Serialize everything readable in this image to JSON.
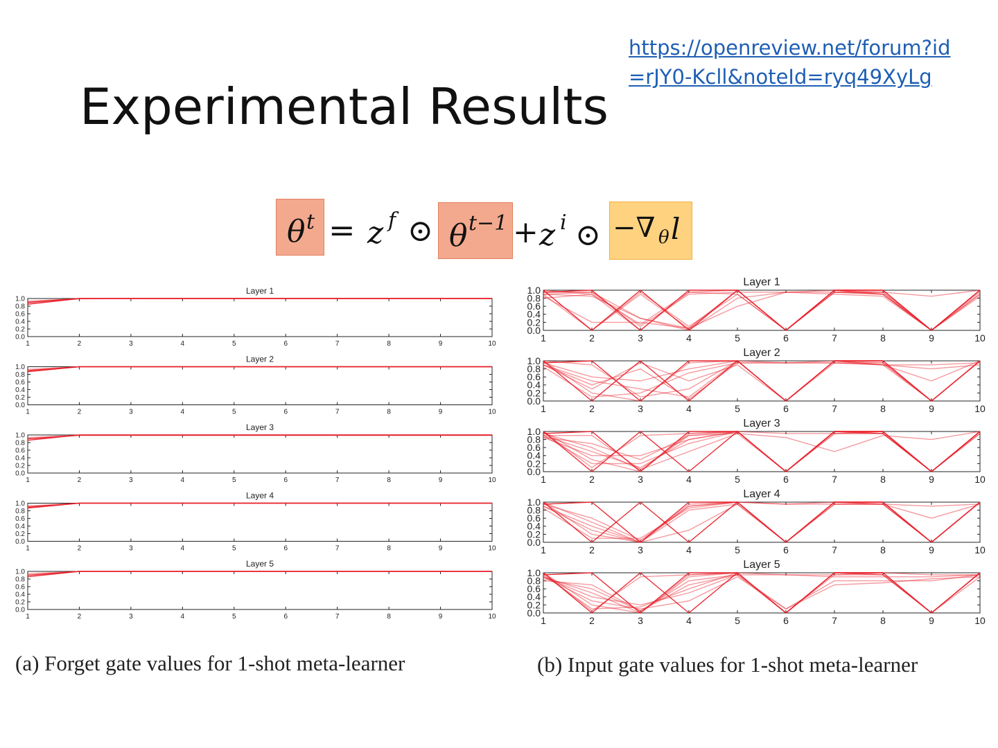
{
  "slide": {
    "title": "Experimental Results",
    "link_line1": "https://openreview.net/forum?id",
    "link_line2": "=rJY0-Kcll&noteId=ryq49XyLg"
  },
  "equation": {
    "theta_t": "θ",
    "theta_t_sup": "t",
    "equals": "=",
    "zf": "z",
    "zf_sup": "f",
    "odot1": "⊙",
    "theta_tm1": "θ",
    "theta_tm1_sup": "t−1",
    "plus": "+",
    "zi": "z",
    "zi_sup": "i",
    "odot2": "⊙",
    "grad": "−∇",
    "grad_sub": "θ",
    "grad_l": "l",
    "colors": {
      "theta_box": "#f3a98e",
      "grad_box": "#ffd27f",
      "box_border_theta": "#e0805e",
      "box_border_grad": "#f0b040"
    }
  },
  "captions": {
    "a": "(a) Forget gate values for 1-shot meta-learner",
    "b": "(b) Input gate values for 1-shot meta-learner"
  },
  "chart_data": [
    {
      "type": "line",
      "panel": "a",
      "title": "Forget gate values for 1-shot meta-learner",
      "x": [
        1,
        2,
        3,
        4,
        5,
        6,
        7,
        8,
        9,
        10
      ],
      "ylim": [
        0,
        1
      ],
      "yticks": [
        "0.0",
        "0.2",
        "0.4",
        "0.6",
        "0.8",
        "1.0"
      ],
      "xticks": [
        "1",
        "2",
        "3",
        "4",
        "5",
        "6",
        "7",
        "8",
        "9",
        "10"
      ],
      "color": "#e8202a",
      "layers": [
        {
          "title": "Layer 1",
          "series": [
            [
              0.85,
              1,
              1,
              1,
              1,
              1,
              1,
              1,
              1,
              1
            ],
            [
              0.9,
              1,
              1,
              1,
              1,
              1,
              1,
              1,
              1,
              1
            ],
            [
              0.93,
              1,
              1,
              1,
              1,
              1,
              1,
              1,
              1,
              1
            ],
            [
              0.88,
              0.99,
              1,
              1,
              1,
              1,
              1,
              1,
              1,
              1
            ]
          ]
        },
        {
          "title": "Layer 2",
          "series": [
            [
              0.87,
              1,
              1,
              1,
              1,
              1,
              1,
              1,
              1,
              1
            ],
            [
              0.9,
              1,
              1,
              1,
              1,
              1,
              1,
              1,
              1,
              1
            ],
            [
              0.93,
              1,
              1,
              1,
              1,
              1,
              1,
              1,
              1,
              1
            ]
          ]
        },
        {
          "title": "Layer 3",
          "series": [
            [
              0.86,
              1,
              1,
              1,
              1,
              1,
              1,
              1,
              1,
              1
            ],
            [
              0.9,
              0.99,
              0.99,
              0.99,
              0.99,
              0.99,
              0.99,
              0.99,
              0.99,
              0.99
            ],
            [
              0.93,
              1,
              1,
              1,
              1,
              1,
              1,
              1,
              1,
              1
            ]
          ]
        },
        {
          "title": "Layer 4",
          "series": [
            [
              0.87,
              1,
              1,
              1,
              1,
              1,
              1,
              1,
              1,
              1
            ],
            [
              0.9,
              1,
              1,
              1,
              1,
              1,
              1,
              1,
              1,
              1
            ],
            [
              0.93,
              1,
              1,
              1,
              1,
              1,
              1,
              1,
              1,
              1
            ]
          ]
        },
        {
          "title": "Layer 5",
          "series": [
            [
              0.86,
              1,
              1,
              1,
              1,
              1,
              1,
              1,
              1,
              1
            ],
            [
              0.9,
              1,
              1,
              1,
              1,
              1,
              1,
              1,
              1,
              1
            ],
            [
              0.94,
              1,
              1,
              1,
              1,
              1,
              1,
              1,
              1,
              1
            ]
          ]
        }
      ]
    },
    {
      "type": "line",
      "panel": "b",
      "title": "Input gate values for 1-shot meta-learner",
      "x": [
        1,
        2,
        3,
        4,
        5,
        6,
        7,
        8,
        9,
        10
      ],
      "ylim": [
        0,
        1
      ],
      "yticks": [
        "0.0",
        "0.2",
        "0.4",
        "0.6",
        "0.8",
        "1.0"
      ],
      "xticks": [
        "1",
        "2",
        "3",
        "4",
        "5",
        "6",
        "7",
        "8",
        "9",
        "10"
      ],
      "color": "#e8202a",
      "layers": [
        {
          "title": "Layer 1",
          "series": [
            [
              1,
              0,
              1,
              0,
              1,
              0,
              1,
              1,
              0,
              1
            ],
            [
              0.95,
              1,
              0,
              1,
              1,
              0,
              1,
              1,
              0,
              1
            ],
            [
              0.9,
              0.95,
              0.3,
              0.05,
              1,
              0,
              0.95,
              0.95,
              0,
              0.95
            ],
            [
              1,
              0.9,
              0,
              0.95,
              1,
              0,
              1,
              0.95,
              0,
              1
            ],
            [
              0.9,
              0,
              0.95,
              0.1,
              0.9,
              0,
              1,
              0.9,
              0,
              1
            ],
            [
              0.95,
              0.95,
              0.1,
              0.9,
              0.95,
              0.95,
              1,
              0.9,
              0,
              1
            ],
            [
              0.85,
              0.2,
              0.2,
              0.05,
              0.6,
              0.95,
              0.9,
              0.85,
              0,
              0.9
            ],
            [
              0.9,
              0.85,
              0.3,
              0,
              0.8,
              0.95,
              0.95,
              0.9,
              0,
              0.85
            ],
            [
              1,
              0,
              0.9,
              0.05,
              1,
              0,
              0.95,
              0.95,
              0.85,
              1
            ],
            [
              0.8,
              0.9,
              0.15,
              0.95,
              0.9,
              0,
              0.95,
              0.9,
              0,
              0.9
            ]
          ]
        },
        {
          "title": "Layer 2",
          "series": [
            [
              1,
              0,
              1,
              0,
              1,
              0,
              1,
              1,
              0,
              1
            ],
            [
              0.95,
              1,
              0,
              1,
              1,
              0,
              1,
              1,
              0,
              1
            ],
            [
              0.9,
              0.5,
              0.3,
              0.1,
              1,
              0,
              0.95,
              0.95,
              0,
              1
            ],
            [
              1,
              0.2,
              0,
              0.95,
              1,
              0,
              1,
              0.95,
              0,
              1
            ],
            [
              0.9,
              0.3,
              0.95,
              0.5,
              0.9,
              0,
              1,
              0.9,
              0,
              1
            ],
            [
              0.85,
              0.1,
              0.2,
              0.7,
              0.95,
              0.95,
              1,
              0.9,
              0.5,
              1
            ],
            [
              0.9,
              0.4,
              0.8,
              0.05,
              0.95,
              0.95,
              0.95,
              0.9,
              0.8,
              0.9
            ],
            [
              0.95,
              0.6,
              0.5,
              0.8,
              1,
              0.95,
              0.95,
              0.9,
              0.9,
              0.95
            ],
            [
              1,
              0.9,
              0.1,
              0.3,
              1,
              0,
              1,
              1,
              0,
              1
            ]
          ]
        },
        {
          "title": "Layer 3",
          "series": [
            [
              1,
              0,
              1,
              0,
              1,
              0,
              1,
              1,
              0,
              1
            ],
            [
              0.95,
              1,
              0,
              1,
              1,
              0,
              1,
              1,
              0,
              1
            ],
            [
              0.9,
              0.5,
              0.1,
              0.8,
              1,
              0,
              0.95,
              0.95,
              0,
              1
            ],
            [
              1,
              0.3,
              0,
              0.95,
              1,
              0,
              1,
              0.95,
              0,
              1
            ],
            [
              0.85,
              0.7,
              0.3,
              0.9,
              0.95,
              0.85,
              0.5,
              0.9,
              0.8,
              1
            ],
            [
              0.9,
              0.2,
              0.2,
              0.7,
              1,
              0,
              1,
              0.95,
              0,
              0.95
            ],
            [
              0.95,
              0.6,
              0.05,
              0.5,
              0.95,
              0,
              0.95,
              0.95,
              0,
              0.95
            ],
            [
              0.9,
              0.9,
              0.05,
              0.9,
              1,
              0.95,
              0.95,
              1,
              0,
              1
            ],
            [
              1,
              0.1,
              0.9,
              0.95,
              1,
              0,
              1,
              1,
              0,
              1
            ],
            [
              0.85,
              0.4,
              0.4,
              0.8,
              1,
              0,
              1,
              0.95,
              0,
              1
            ]
          ]
        },
        {
          "title": "Layer 4",
          "series": [
            [
              1,
              0,
              1,
              0,
              1,
              0,
              1,
              1,
              0,
              1
            ],
            [
              0.95,
              1,
              0,
              1,
              1,
              0,
              1,
              1,
              0,
              1
            ],
            [
              0.9,
              0.4,
              0,
              0.8,
              0.95,
              0,
              0.95,
              0.95,
              0,
              1
            ],
            [
              1,
              0.2,
              0,
              0.9,
              1,
              0,
              1,
              0.95,
              0,
              1
            ],
            [
              0.9,
              0.3,
              0,
              0.3,
              0.95,
              0,
              0.95,
              0.95,
              0.6,
              0.95
            ],
            [
              0.95,
              0.6,
              0.05,
              0.9,
              1,
              0.95,
              1,
              0.95,
              0,
              1
            ],
            [
              0.85,
              0.1,
              0.1,
              0.85,
              1,
              0.95,
              0.95,
              0.95,
              0.9,
              0.95
            ],
            [
              1,
              0.5,
              0,
              0.95,
              1,
              0,
              1,
              1,
              0,
              1
            ]
          ]
        },
        {
          "title": "Layer 5",
          "series": [
            [
              1,
              0,
              1,
              0,
              1,
              0,
              1,
              1,
              0,
              1
            ],
            [
              0.95,
              1,
              0,
              1,
              1,
              0,
              1,
              1,
              0,
              1
            ],
            [
              0.9,
              0.4,
              0.2,
              0.5,
              0.95,
              0,
              0.95,
              0.95,
              0,
              0.9
            ],
            [
              1,
              0.2,
              0,
              0.9,
              1,
              0,
              1,
              0.95,
              0,
              1
            ],
            [
              0.9,
              0.3,
              0.1,
              0.3,
              0.9,
              0.1,
              0.8,
              0.8,
              0.8,
              0.95
            ],
            [
              0.85,
              0.6,
              0.05,
              0.7,
              0.95,
              0.95,
              0.9,
              0.9,
              0.9,
              0.95
            ],
            [
              0.95,
              0.1,
              0.15,
              0.6,
              1,
              0.95,
              0.95,
              1,
              0.95,
              0.95
            ],
            [
              0.9,
              0.5,
              0,
              0.95,
              1,
              0,
              1,
              0.95,
              0,
              1
            ],
            [
              0.8,
              0.7,
              0.05,
              0.8,
              0.95,
              0.1,
              0.7,
              0.75,
              0.85,
              0.9
            ],
            [
              1,
              0.05,
              0.9,
              0.95,
              1,
              0,
              1,
              1,
              0,
              1
            ]
          ]
        }
      ]
    }
  ]
}
